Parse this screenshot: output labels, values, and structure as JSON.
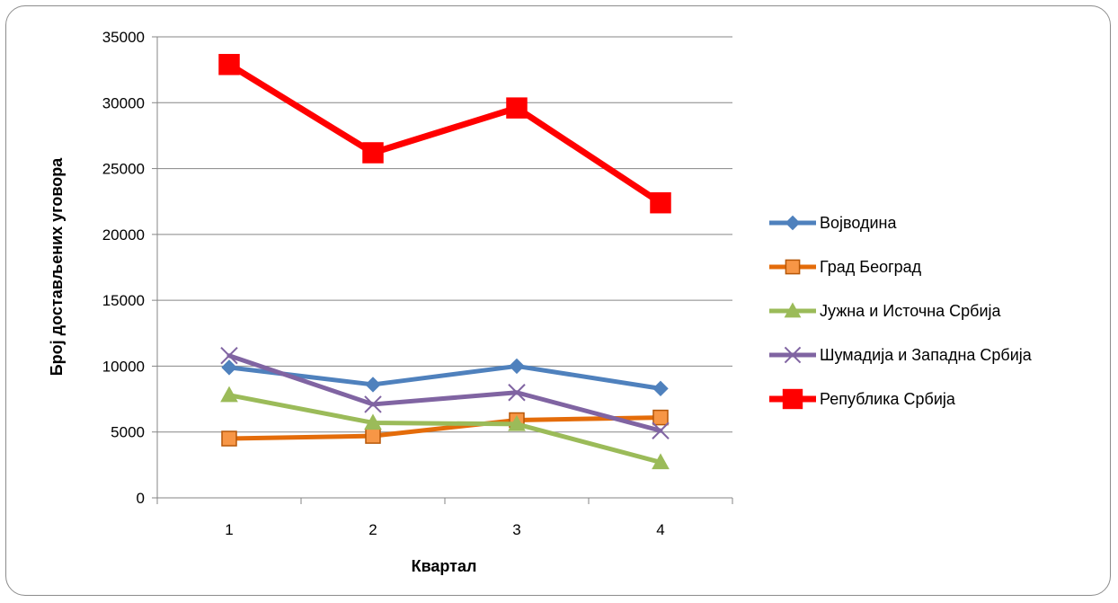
{
  "chart_data": {
    "type": "line",
    "title": "",
    "xlabel": "Квартал",
    "ylabel": "Број достављених уговора",
    "categories": [
      "1",
      "2",
      "3",
      "4"
    ],
    "ylim": [
      0,
      35000
    ],
    "yticks": [
      "0",
      "5000",
      "10000",
      "15000",
      "20000",
      "25000",
      "30000",
      "35000"
    ],
    "grid": true,
    "legend_position": "right",
    "series": [
      {
        "name": "Војводина",
        "values": [
          9900,
          8600,
          10000,
          8300
        ],
        "color": "#4f81bd",
        "marker": "diamond"
      },
      {
        "name": "Град Београд",
        "values": [
          4500,
          4700,
          5900,
          6100
        ],
        "color": "#e46c0a",
        "marker": "square"
      },
      {
        "name": "Јужна и Источна Србија",
        "values": [
          7800,
          5700,
          5600,
          2700
        ],
        "color": "#9bbb59",
        "marker": "triangle"
      },
      {
        "name": "Шумадија и Западна Србија",
        "values": [
          10800,
          7100,
          8000,
          5100
        ],
        "color": "#8064a2",
        "marker": "x"
      },
      {
        "name": "Република Србија",
        "values": [
          32900,
          26200,
          29600,
          22400
        ],
        "color": "#ff0000",
        "marker": "square"
      }
    ]
  }
}
